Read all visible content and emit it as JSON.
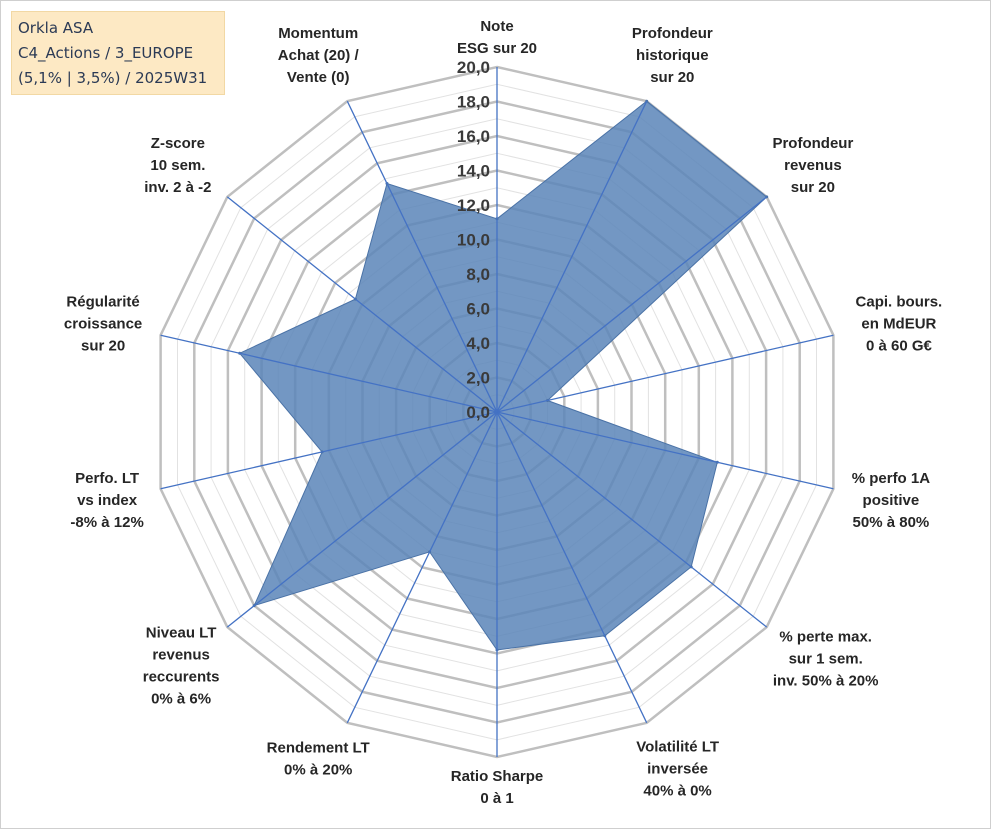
{
  "title": {
    "line1": "Orkla ASA",
    "line2": "C4_Actions / 3_EUROPE",
    "line3": "(5,1% | 3,5%) / 2025W31"
  },
  "colors": {
    "fill": "#5a85b8",
    "stroke": "#4a72a6",
    "spoke": "#4472c4",
    "grid_major": "#bfbfbf",
    "grid_minor": "#e2e2e2",
    "title_bg": "#fde9c4"
  },
  "chart_data": {
    "type": "radar",
    "rmin": 0,
    "rmax": 20,
    "tick_step": 2,
    "tick_labels": [
      "0,0",
      "2,0",
      "4,0",
      "6,0",
      "8,0",
      "10,0",
      "12,0",
      "14,0",
      "16,0",
      "18,0",
      "20,0"
    ],
    "axes": [
      {
        "lines": [
          "Note",
          "ESG sur 20"
        ],
        "value": 11.2
      },
      {
        "lines": [
          "Profondeur",
          "historique",
          "sur 20"
        ],
        "value": 20.0
      },
      {
        "lines": [
          "Profondeur",
          "revenus",
          "sur 20"
        ],
        "value": 20.0
      },
      {
        "lines": [
          "Capi. bours.",
          "en MdEUR",
          "0 à 60 G€"
        ],
        "value": 3.0
      },
      {
        "lines": [
          "% perfo 1A",
          "positive",
          "50% à 80%"
        ],
        "value": 13.1
      },
      {
        "lines": [
          "% perte max.",
          "sur 1 sem.",
          "inv. 50% à 20%"
        ],
        "value": 14.4
      },
      {
        "lines": [
          "Volatilité LT",
          "inversée",
          "40% à 0%"
        ],
        "value": 14.4
      },
      {
        "lines": [
          "Ratio Sharpe",
          "0 à 1"
        ],
        "value": 13.8
      },
      {
        "lines": [
          "Rendement LT",
          "0% à 20%"
        ],
        "value": 9.0
      },
      {
        "lines": [
          "Niveau LT",
          "revenus",
          "reccurents",
          "0% à 6%"
        ],
        "value": 18.0
      },
      {
        "lines": [
          "Perfo. LT",
          "vs index",
          "-8% à 12%"
        ],
        "value": 10.4
      },
      {
        "lines": [
          "Régularité",
          "croissance",
          "sur 20"
        ],
        "value": 15.3
      },
      {
        "lines": [
          "Z-score",
          "10 sem.",
          "inv. 2 à -2"
        ],
        "value": 10.5
      },
      {
        "lines": [
          "Momentum",
          "Achat (20) /",
          "Vente (0)"
        ],
        "value": 14.7
      }
    ]
  }
}
